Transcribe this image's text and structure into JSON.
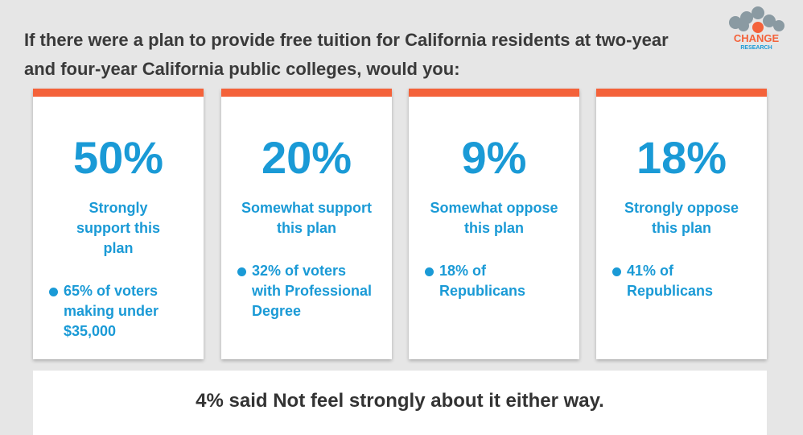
{
  "title": "If there were a plan to provide free tuition for California residents at two-year and four-year California public colleges, would you:",
  "logo": {
    "line1": "CHANGE",
    "line2": "RESEARCH"
  },
  "colors": {
    "accent": "#f4623a",
    "blue": "#1a9ad6"
  },
  "cards": [
    {
      "pct": "50%",
      "label": "Strongly support this plan",
      "note": "65% of voters making under $35,000"
    },
    {
      "pct": "20%",
      "label": "Somewhat support this plan",
      "note": "32% of voters with Professional Degree"
    },
    {
      "pct": "9%",
      "label": "Somewhat oppose this plan",
      "note": "18% of Republicans"
    },
    {
      "pct": "18%",
      "label": "Strongly oppose this plan",
      "note": "41% of Republicans"
    }
  ],
  "footer": "4% said Not feel strongly about it either way."
}
